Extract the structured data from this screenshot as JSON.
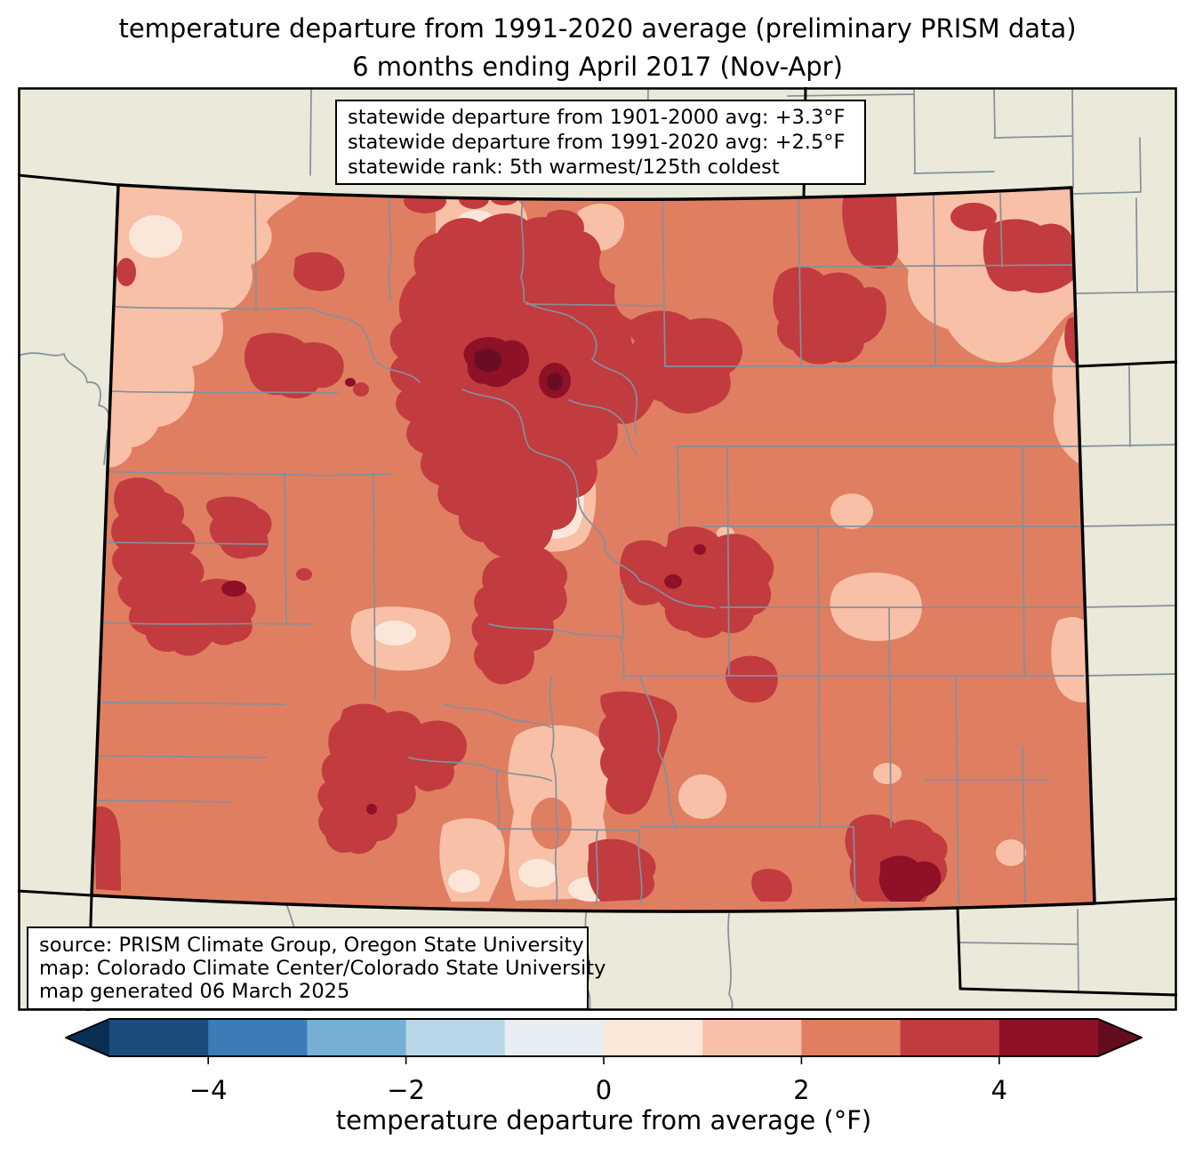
{
  "title": {
    "line1": "temperature departure from 1991-2020 average (preliminary PRISM data)",
    "line2": "6 months ending April 2017 (Nov-Apr)"
  },
  "stats_box": {
    "line1": "statewide departure from 1901-2000 avg: +3.3°F",
    "line2": "statewide departure from 1991-2020 avg: +2.5°F",
    "line3": "statewide rank: 5th warmest/125th coldest"
  },
  "source_box": {
    "line1": "source: PRISM Climate Group, Oregon State University",
    "line2": "map: Colorado Climate Center/Colorado State University",
    "line3": "map generated 06 March 2025"
  },
  "colorbar": {
    "label": "temperature departure from average (°F)",
    "range": [
      -5,
      5
    ],
    "ticks": [
      {
        "value": -4,
        "label": "−4"
      },
      {
        "value": -2,
        "label": "−2"
      },
      {
        "value": 0,
        "label": "0"
      },
      {
        "value": 2,
        "label": "2"
      },
      {
        "value": 4,
        "label": "4"
      }
    ],
    "segment_colors": [
      "#1C4C7C",
      "#3B7CB8",
      "#76AFD3",
      "#B8D7E8",
      "#E6EEF3",
      "#FBE7DA",
      "#F8C0A6",
      "#E07E62",
      "#C23B3E",
      "#8E1127"
    ],
    "under_color": "#0A2F55",
    "over_color": "#650D1F"
  },
  "map": {
    "region": "Colorado",
    "background_color": "#EBE9DA",
    "county_line_color": "#84909B",
    "state_line_color": "#000000",
    "fill_levels": {
      "0_to_1": "#FBE7DA",
      "1_to_2": "#F8C0A6",
      "2_to_3": "#E07E62",
      "3_to_4": "#C23B3E",
      "4_to_5": "#8E1127",
      "over_5": "#6B0D22"
    }
  }
}
